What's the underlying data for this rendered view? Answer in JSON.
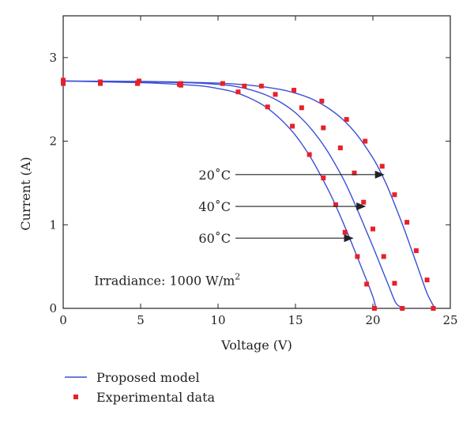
{
  "chart_data": {
    "type": "line",
    "title": "",
    "xlabel": "Voltage (V)",
    "ylabel": "Current (A)",
    "xlim": [
      0,
      25
    ],
    "ylim": [
      0,
      3.5
    ],
    "x_ticks": [
      0,
      5,
      10,
      15,
      20,
      25
    ],
    "y_ticks": [
      0,
      1,
      2,
      3
    ],
    "x_tick_labels": [
      "0",
      "5",
      "10",
      "15",
      "20",
      "25"
    ],
    "y_tick_labels": [
      "0",
      "1",
      "2",
      "3"
    ],
    "grid": false,
    "legend_placement": "bottom-left, below plot",
    "legend": [
      {
        "label": "Proposed model",
        "marker": "line",
        "color": "#3a4fd6"
      },
      {
        "label": "Experimental data",
        "marker": "square",
        "color": "#e8202a"
      }
    ],
    "colors": {
      "model": "#3a4fd6",
      "data": "#e8202a"
    },
    "series": [
      {
        "temperature_label": "20˚C",
        "model": {
          "x": [
            0,
            5,
            8,
            10,
            12,
            14,
            15,
            16,
            17,
            18,
            19,
            20,
            20.5,
            21,
            21.5,
            22,
            22.5,
            23,
            23.5,
            24
          ],
          "y": [
            2.72,
            2.715,
            2.705,
            2.695,
            2.67,
            2.62,
            2.575,
            2.51,
            2.41,
            2.27,
            2.07,
            1.8,
            1.63,
            1.43,
            1.2,
            0.96,
            0.7,
            0.44,
            0.18,
            0.0
          ]
        },
        "experimental": {
          "x": [
            0,
            2.4,
            4.9,
            7.6,
            10.3,
            11.7,
            12.8,
            14.9,
            16.7,
            18.3,
            19.5,
            20.6,
            21.4,
            22.2,
            22.8,
            23.5,
            23.9
          ],
          "y": [
            2.73,
            2.71,
            2.72,
            2.69,
            2.69,
            2.66,
            2.66,
            2.61,
            2.48,
            2.26,
            2.0,
            1.7,
            1.36,
            1.03,
            0.69,
            0.34,
            0.0
          ]
        },
        "annotation_target": {
          "x": 20.7,
          "y": 1.6
        }
      },
      {
        "temperature_label": "40˚C",
        "model": {
          "x": [
            0,
            5,
            8,
            10,
            11,
            12,
            13,
            14,
            15,
            16,
            17,
            18,
            18.5,
            19,
            19.5,
            20,
            20.5,
            21,
            21.5,
            22
          ],
          "y": [
            2.72,
            2.71,
            2.7,
            2.68,
            2.66,
            2.62,
            2.56,
            2.47,
            2.34,
            2.15,
            1.9,
            1.58,
            1.39,
            1.18,
            0.96,
            0.74,
            0.51,
            0.28,
            0.06,
            0.0
          ]
        },
        "experimental": {
          "x": [
            0,
            4.8,
            7.5,
            11.3,
            13.7,
            15.4,
            16.8,
            17.9,
            18.8,
            19.4,
            20.0,
            20.7,
            21.4,
            21.9
          ],
          "y": [
            2.7,
            2.7,
            2.68,
            2.59,
            2.56,
            2.4,
            2.16,
            1.92,
            1.62,
            1.27,
            0.95,
            0.62,
            0.3,
            0.0
          ]
        },
        "annotation_target": {
          "x": 19.5,
          "y": 1.22
        }
      },
      {
        "temperature_label": "60˚C",
        "model": {
          "x": [
            0,
            5,
            7,
            9,
            10,
            11,
            12,
            13,
            14,
            15,
            16,
            17,
            17.5,
            18,
            18.5,
            19,
            19.5,
            20,
            20.2
          ],
          "y": [
            2.72,
            2.7,
            2.685,
            2.66,
            2.63,
            2.59,
            2.52,
            2.42,
            2.27,
            2.07,
            1.8,
            1.46,
            1.27,
            1.06,
            0.84,
            0.61,
            0.38,
            0.14,
            0.0
          ]
        },
        "experimental": {
          "x": [
            0,
            2.4,
            4.8,
            7.6,
            13.2,
            14.8,
            15.9,
            16.8,
            17.6,
            18.2,
            19.0,
            19.6,
            20.1
          ],
          "y": [
            2.69,
            2.69,
            2.69,
            2.67,
            2.41,
            2.18,
            1.84,
            1.56,
            1.24,
            0.91,
            0.62,
            0.29,
            0.0
          ]
        },
        "annotation_target": {
          "x": 18.7,
          "y": 0.84
        }
      }
    ],
    "annotations": [
      {
        "text": "Irradiance: 1000 W/m",
        "superscript": "2",
        "x": 2.0,
        "y": 0.28
      }
    ]
  }
}
